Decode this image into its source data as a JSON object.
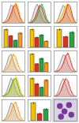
{
  "chart_data": [
    {
      "type": "line",
      "tick_labels": false,
      "xlim": [
        0,
        10
      ],
      "ylim": [
        0,
        40
      ],
      "x": [
        0,
        1,
        2,
        3,
        4,
        5,
        6,
        7,
        8,
        9,
        10
      ],
      "series": [
        {
          "color": "#9a9a9a",
          "values": [
            0,
            2,
            8,
            20,
            35,
            30,
            15,
            6,
            2,
            0,
            0
          ]
        },
        {
          "color": "#e03020",
          "values": [
            0,
            1,
            3,
            8,
            18,
            32,
            36,
            22,
            8,
            2,
            0
          ]
        },
        {
          "color": "#f29a20",
          "values": [
            0,
            0,
            2,
            5,
            12,
            25,
            38,
            30,
            12,
            3,
            0
          ]
        }
      ]
    },
    {
      "type": "line",
      "tick_labels": false,
      "xlim": [
        0,
        10
      ],
      "ylim": [
        0,
        40
      ],
      "x": [
        0,
        1,
        2,
        3,
        4,
        5,
        6,
        7,
        8,
        9,
        10
      ],
      "series": [
        {
          "color": "#9a9a9a",
          "values": [
            0,
            3,
            12,
            28,
            36,
            24,
            10,
            3,
            1,
            0,
            0
          ]
        },
        {
          "color": "#e03020",
          "values": [
            0,
            1,
            4,
            10,
            22,
            34,
            30,
            16,
            5,
            1,
            0
          ]
        },
        {
          "color": "#30a040",
          "values": [
            0,
            0,
            2,
            6,
            14,
            28,
            36,
            26,
            10,
            2,
            0
          ]
        }
      ]
    },
    {
      "type": "line",
      "tick_labels": false,
      "xlim": [
        0,
        10
      ],
      "ylim": [
        0,
        40
      ],
      "x": [
        0,
        1,
        2,
        3,
        4,
        5,
        6,
        7,
        8,
        9,
        10
      ],
      "series": [
        {
          "color": "#9a9a9a",
          "values": [
            0,
            2,
            10,
            24,
            34,
            28,
            14,
            5,
            1,
            0,
            0
          ]
        },
        {
          "color": "#f2c200",
          "values": [
            0,
            1,
            3,
            9,
            20,
            33,
            34,
            20,
            7,
            1,
            0
          ]
        },
        {
          "color": "#e03020",
          "values": [
            0,
            0,
            1,
            4,
            10,
            22,
            36,
            32,
            14,
            3,
            0
          ]
        }
      ]
    },
    {
      "type": "bar",
      "tick_labels": false,
      "ylim": [
        0,
        120
      ],
      "categories": [
        null,
        null,
        null,
        null
      ],
      "values": [
        100,
        65,
        40,
        80
      ],
      "errors": [
        6,
        5,
        4,
        6
      ],
      "colors": [
        "#f2c200",
        "#e03020",
        "#30a040",
        "#f29a20"
      ]
    },
    {
      "type": "bar",
      "tick_labels": false,
      "ylim": [
        0,
        120
      ],
      "categories": [
        null,
        null,
        null,
        null
      ],
      "values": [
        100,
        55,
        70,
        35
      ],
      "errors": [
        5,
        6,
        5,
        4
      ],
      "colors": [
        "#f2c200",
        "#e03020",
        "#30a040",
        "#f29a20"
      ]
    },
    {
      "type": "bar",
      "tick_labels": false,
      "ylim": [
        0,
        120
      ],
      "categories": [
        null,
        null,
        null
      ],
      "values": [
        100,
        60,
        85
      ],
      "errors": [
        6,
        5,
        6
      ],
      "colors": [
        "#f2c200",
        "#e03020",
        "#30a040"
      ]
    },
    {
      "type": "line",
      "tick_labels": false,
      "xlim": [
        0,
        10
      ],
      "ylim": [
        0,
        40
      ],
      "x": [
        0,
        1,
        2,
        3,
        4,
        5,
        6,
        7,
        8,
        9,
        10
      ],
      "series": [
        {
          "color": "#9a9a9a",
          "values": [
            0,
            4,
            14,
            30,
            34,
            20,
            8,
            2,
            0,
            0,
            0
          ]
        },
        {
          "color": "#f29a20",
          "values": [
            0,
            1,
            5,
            12,
            24,
            34,
            28,
            14,
            4,
            1,
            0
          ]
        }
      ]
    },
    {
      "type": "bar",
      "tick_labels": false,
      "ylim": [
        0,
        120
      ],
      "categories": [
        null,
        null,
        null,
        null
      ],
      "values": [
        100,
        45,
        75,
        50
      ],
      "errors": [
        5,
        4,
        6,
        5
      ],
      "colors": [
        "#f2c200",
        "#e03020",
        "#30a040",
        "#f29a20"
      ]
    },
    {
      "type": "line",
      "tick_labels": false,
      "xlim": [
        0,
        10
      ],
      "ylim": [
        0,
        40
      ],
      "x": [
        0,
        1,
        2,
        3,
        4,
        5,
        6,
        7,
        8,
        9,
        10
      ],
      "series": [
        {
          "color": "#9a9a9a",
          "values": [
            0,
            3,
            10,
            22,
            33,
            30,
            16,
            6,
            2,
            0,
            0
          ]
        },
        {
          "color": "#e03020",
          "values": [
            0,
            1,
            3,
            7,
            16,
            30,
            36,
            24,
            9,
            2,
            0
          ]
        }
      ]
    },
    {
      "type": "line",
      "tick_labels": false,
      "xlim": [
        0,
        10
      ],
      "ylim": [
        0,
        40
      ],
      "x": [
        0,
        1,
        2,
        3,
        4,
        5,
        6,
        7,
        8,
        9,
        10
      ],
      "series": [
        {
          "color": "#9a9a9a",
          "values": [
            0,
            2,
            9,
            22,
            35,
            28,
            13,
            4,
            1,
            0,
            0
          ]
        },
        {
          "color": "#30a040",
          "values": [
            0,
            1,
            4,
            9,
            20,
            32,
            34,
            20,
            6,
            1,
            0
          ]
        },
        {
          "color": "#f2c200",
          "values": [
            0,
            0,
            2,
            6,
            13,
            26,
            37,
            28,
            11,
            2,
            0
          ]
        }
      ]
    },
    {
      "type": "bar",
      "tick_labels": false,
      "ylim": [
        0,
        120
      ],
      "categories": [
        null,
        null,
        null,
        null
      ],
      "values": [
        100,
        70,
        50,
        90
      ],
      "errors": [
        6,
        5,
        5,
        7
      ],
      "colors": [
        "#f2c200",
        "#e03020",
        "#30a040",
        "#f29a20"
      ]
    },
    {
      "type": "line",
      "tick_labels": false,
      "xlim": [
        0,
        10
      ],
      "ylim": [
        0,
        40
      ],
      "x": [
        0,
        1,
        2,
        3,
        4,
        5,
        6,
        7,
        8,
        9,
        10
      ],
      "series": [
        {
          "color": "#9a9a9a",
          "values": [
            0,
            3,
            12,
            26,
            34,
            24,
            11,
            3,
            1,
            0,
            0
          ]
        },
        {
          "color": "#e03020",
          "values": [
            0,
            1,
            4,
            11,
            23,
            34,
            30,
            15,
            5,
            1,
            0
          ]
        }
      ]
    },
    {
      "type": "line",
      "tick_labels": false,
      "xlim": [
        0,
        10
      ],
      "ylim": [
        0,
        40
      ],
      "x": [
        0,
        1,
        2,
        3,
        4,
        5,
        6,
        7,
        8,
        9,
        10
      ],
      "series": [
        {
          "color": "#9a9a9a",
          "values": [
            0,
            2,
            8,
            20,
            34,
            31,
            16,
            6,
            2,
            0,
            0
          ]
        },
        {
          "color": "#f29a20",
          "values": [
            0,
            1,
            3,
            8,
            17,
            31,
            36,
            23,
            8,
            2,
            0
          ]
        }
      ]
    },
    {
      "type": "bar",
      "tick_labels": false,
      "ylim": [
        0,
        120
      ],
      "categories": [
        null,
        null,
        null
      ],
      "values": [
        100,
        40,
        65
      ],
      "errors": [
        5,
        4,
        6
      ],
      "colors": [
        "#f2c200",
        "#e03020",
        "#30a040"
      ]
    },
    {
      "type": "scatter",
      "tick_labels": false,
      "marker": "circle",
      "color": "#7a3a9a",
      "xlim": [
        0,
        10
      ],
      "ylim": [
        0,
        10
      ],
      "x": [
        2.5,
        6.5,
        4.5,
        7.5,
        3
      ],
      "y": [
        7,
        7.5,
        4.5,
        3,
        2
      ]
    }
  ]
}
